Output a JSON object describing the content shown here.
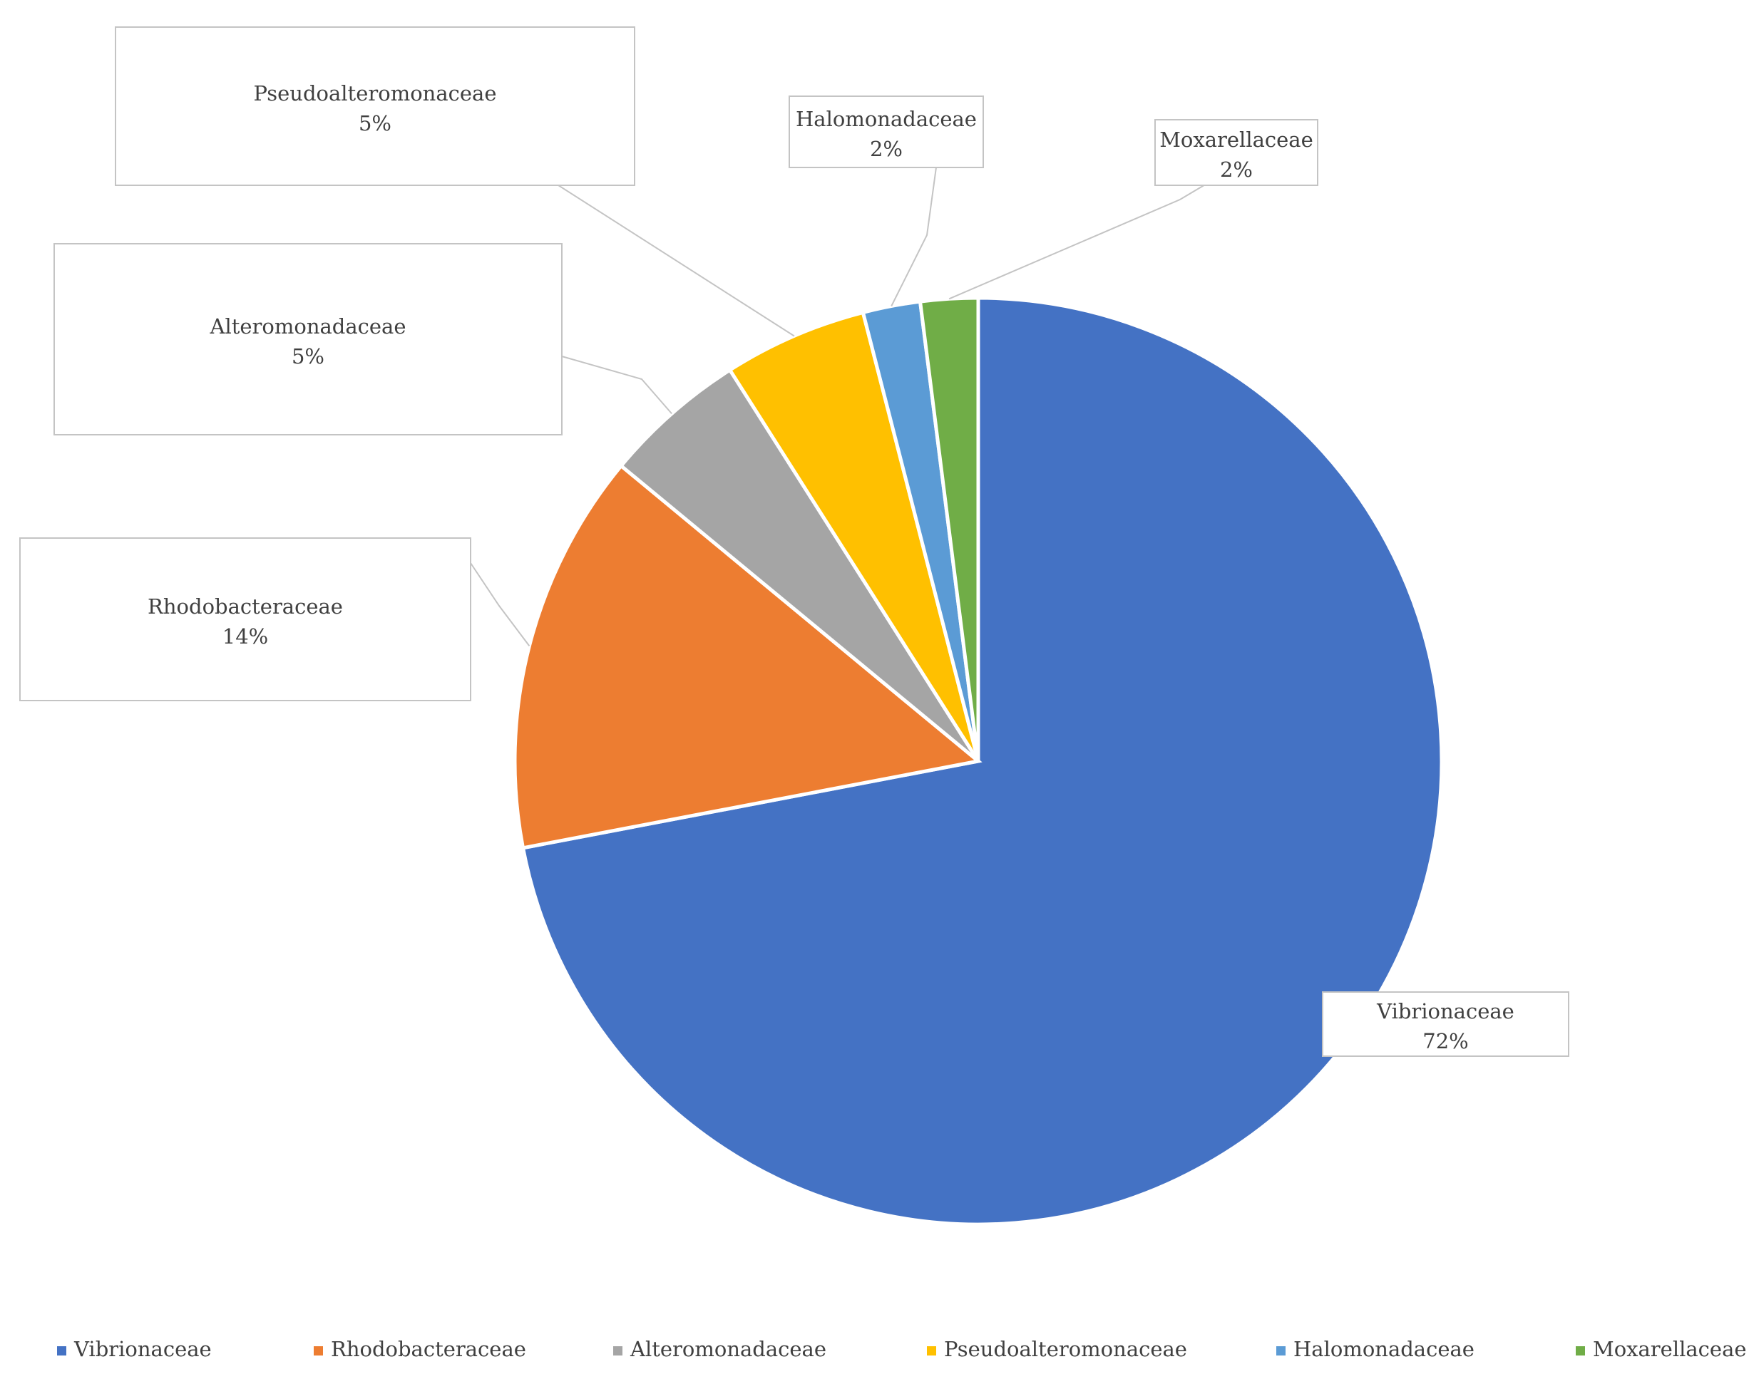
{
  "chart_data": {
    "type": "pie",
    "title": "",
    "slices": [
      {
        "label": "Vibrionaceae",
        "value": 72,
        "percent_label": "72%",
        "color": "#4472C4"
      },
      {
        "label": "Rhodobacteraceae",
        "value": 14,
        "percent_label": "14%",
        "color": "#ED7D31"
      },
      {
        "label": "Alteromonadaceae",
        "value": 5,
        "percent_label": "5%",
        "color": "#A5A5A5"
      },
      {
        "label": "Pseudoalteromonaceae",
        "value": 5,
        "percent_label": "5%",
        "color": "#FFC000"
      },
      {
        "label": "Halomonadaceae",
        "value": 2,
        "percent_label": "2%",
        "color": "#5B9BD5"
      },
      {
        "label": "Moxarellaceae",
        "value": 2,
        "percent_label": "2%",
        "color": "#70AD47"
      }
    ],
    "start_angle": "12 o'clock",
    "direction": "clockwise",
    "data_labels": "callout boxes with category name and percentage",
    "legend_position": "bottom",
    "legend": [
      "Vibrionaceae",
      "Rhodobacteraceae",
      "Alteromonadaceae",
      "Pseudoalteromonaceae",
      "Halomonadaceae",
      "Moxarellaceae"
    ]
  }
}
